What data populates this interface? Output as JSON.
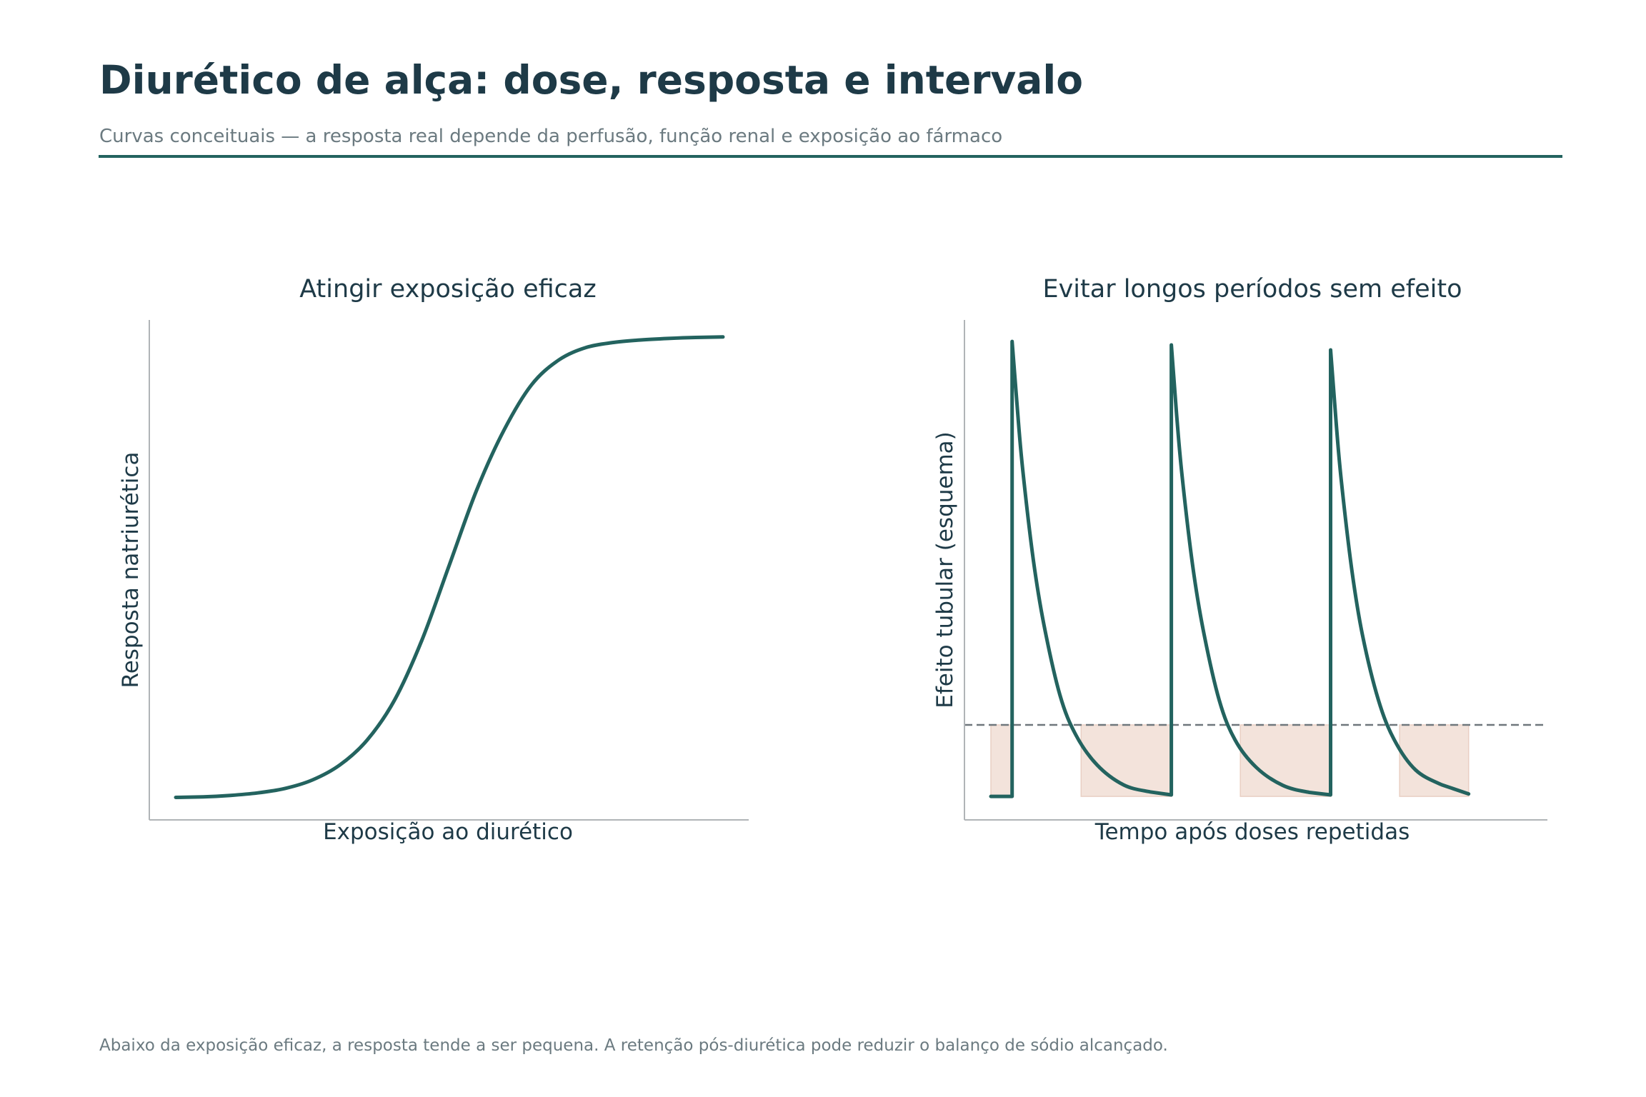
{
  "page": {
    "title": "Diurético de alça: dose, resposta e intervalo",
    "subtitle": "Curvas conceituais — a resposta real depende da perfusão, função renal e exposição ao fármaco",
    "footnote": "Abaixo da exposição eficaz, a resposta tende a ser pequena. A retenção pós-diurética pode reduzir o balanço de sódio alcançado."
  },
  "colors": {
    "title": "#1e3a47",
    "muted": "#6b7a80",
    "accent": "#23635f",
    "axis": "#b0b4b7",
    "threshold": "#6f777c",
    "shade": "#f3e3db",
    "shade_edge": "#e9cfc3",
    "background": "#ffffff"
  },
  "chart_data": [
    {
      "type": "line",
      "title": "Atingir exposição eficaz",
      "xlabel": "Exposição ao diurético",
      "ylabel": "Resposta natriurética",
      "xlim": [
        0,
        10
      ],
      "ylim": [
        0,
        1
      ],
      "grid": false,
      "series": [
        {
          "x": [
            0,
            0.5,
            1,
            1.5,
            2,
            2.5,
            3,
            3.5,
            4,
            4.5,
            5,
            5.5,
            6,
            6.5,
            7,
            7.5,
            8,
            8.5,
            9,
            9.5,
            10
          ],
          "y": [
            0.045,
            0.046,
            0.049,
            0.054,
            0.063,
            0.08,
            0.11,
            0.16,
            0.24,
            0.36,
            0.51,
            0.66,
            0.78,
            0.87,
            0.92,
            0.945,
            0.955,
            0.96,
            0.963,
            0.965,
            0.966
          ]
        }
      ]
    },
    {
      "type": "line",
      "title": "Evitar longos períodos sem efeito",
      "xlabel": "Tempo após doses repetidas",
      "ylabel": "Efeito tubular (esquema)",
      "xlim": [
        0,
        10
      ],
      "ylim": [
        0,
        1
      ],
      "grid": false,
      "threshold": 0.19,
      "dose_times": [
        0.4,
        3.4,
        6.4
      ],
      "series": [
        {
          "x": [
            0,
            0.4,
            0.4,
            0.5,
            0.6,
            0.8,
            1.0,
            1.3,
            1.6,
            2.0,
            2.5,
            3.0,
            3.4,
            3.4,
            3.5,
            3.6,
            3.8,
            4.0,
            4.3,
            4.6,
            5.0,
            5.5,
            6.0,
            6.4,
            6.4,
            6.5,
            6.6,
            6.8,
            7.0,
            7.3,
            7.6,
            8.0,
            8.5,
            9.0
          ],
          "y": [
            0.047,
            0.047,
            0.957,
            0.82,
            0.7,
            0.52,
            0.39,
            0.25,
            0.17,
            0.11,
            0.07,
            0.056,
            0.05,
            0.95,
            0.81,
            0.69,
            0.51,
            0.38,
            0.24,
            0.16,
            0.105,
            0.069,
            0.055,
            0.05,
            0.94,
            0.8,
            0.68,
            0.5,
            0.37,
            0.24,
            0.16,
            0.1,
            0.07,
            0.052
          ]
        }
      ],
      "below_threshold_intervals": [
        [
          0,
          0.4
        ],
        [
          1.7,
          3.4
        ],
        [
          4.7,
          6.4
        ],
        [
          7.7,
          9.0
        ]
      ]
    }
  ]
}
